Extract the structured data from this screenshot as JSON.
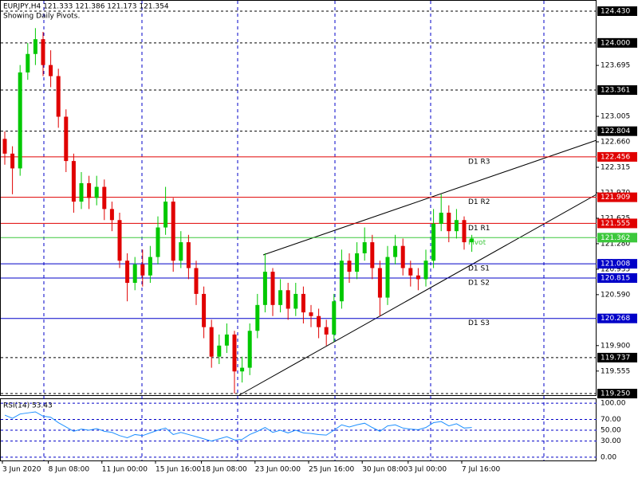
{
  "chart_data": {
    "type": "candlestick",
    "title": "EURJPY,H4  121.333 121.386 121.173 121.354",
    "subtitle": "Showing Daily Pivots.",
    "categories": [
      "3 Jun 2020",
      null,
      null,
      null,
      null,
      null,
      "8 Jun 08:00",
      null,
      null,
      null,
      null,
      null,
      null,
      "11 Jun 00:00",
      null,
      null,
      null,
      null,
      null,
      null,
      "15 Jun 16:00",
      null,
      null,
      null,
      null,
      null,
      "18 Jun 08:00",
      null,
      null,
      null,
      null,
      null,
      null,
      "23 Jun 00:00",
      null,
      null,
      null,
      null,
      null,
      null,
      "25 Jun 16:00",
      null,
      null,
      null,
      null,
      null,
      null,
      "30 Jun 08:00",
      null,
      null,
      null,
      null,
      null,
      "3 Jul 00:00",
      null,
      null,
      null,
      null,
      null,
      null,
      "7 Jul 16:00",
      null
    ],
    "open": [
      122.7,
      122.5,
      122.3,
      123.6,
      123.85,
      124.05,
      123.7,
      123.55,
      123.0,
      122.4,
      121.85,
      122.1,
      121.9,
      122.05,
      121.75,
      121.6,
      121.05,
      120.75,
      121.0,
      120.85,
      121.1,
      121.5,
      121.85,
      121.05,
      121.3,
      120.95,
      120.6,
      120.15,
      119.75,
      119.9,
      120.05,
      119.55,
      119.6,
      120.1,
      120.45,
      120.9,
      120.45,
      120.65,
      120.4,
      120.6,
      120.35,
      120.3,
      120.15,
      120.05,
      120.5,
      121.05,
      120.9,
      121.15,
      121.3,
      120.95,
      120.55,
      121.1,
      121.25,
      120.95,
      120.85,
      120.8,
      121.05,
      121.55,
      121.7,
      121.45,
      121.6,
      121.3
    ],
    "high": [
      122.8,
      122.6,
      123.7,
      124.0,
      124.2,
      124.15,
      123.9,
      123.65,
      123.1,
      122.5,
      122.25,
      122.2,
      122.2,
      122.15,
      121.85,
      121.7,
      121.15,
      121.1,
      121.2,
      121.25,
      121.65,
      122.05,
      121.9,
      121.45,
      121.4,
      121.05,
      120.7,
      120.25,
      120.05,
      120.2,
      120.1,
      119.75,
      120.2,
      120.6,
      121.15,
      120.95,
      120.8,
      120.75,
      120.75,
      120.7,
      120.45,
      120.4,
      120.25,
      120.6,
      121.2,
      121.15,
      121.3,
      121.5,
      121.4,
      121.05,
      121.25,
      121.4,
      121.35,
      121.05,
      120.95,
      121.2,
      121.75,
      121.95,
      121.8,
      121.75,
      121.65,
      121.4
    ],
    "low": [
      122.35,
      121.95,
      122.2,
      123.5,
      123.7,
      123.55,
      123.4,
      122.85,
      122.25,
      121.7,
      121.75,
      121.75,
      121.8,
      121.6,
      121.45,
      120.95,
      120.5,
      120.65,
      120.7,
      120.75,
      121.0,
      121.4,
      120.9,
      120.95,
      120.8,
      120.45,
      120.0,
      119.6,
      119.65,
      119.8,
      119.25,
      119.4,
      119.5,
      120.0,
      120.35,
      120.3,
      120.35,
      120.25,
      120.3,
      120.2,
      120.15,
      120.0,
      119.9,
      119.95,
      120.4,
      120.75,
      120.8,
      121.05,
      120.8,
      120.3,
      120.45,
      121.0,
      120.85,
      120.7,
      120.65,
      120.7,
      120.95,
      121.45,
      121.3,
      121.35,
      121.2,
      121.17
    ],
    "close": [
      122.5,
      122.3,
      123.6,
      123.85,
      124.05,
      123.7,
      123.55,
      123.0,
      122.4,
      121.85,
      122.1,
      121.9,
      122.05,
      121.75,
      121.6,
      121.05,
      120.75,
      121.0,
      120.85,
      121.1,
      121.5,
      121.85,
      121.05,
      121.3,
      120.95,
      120.6,
      120.15,
      119.75,
      119.9,
      120.05,
      119.55,
      119.6,
      120.1,
      120.45,
      120.9,
      120.45,
      120.65,
      120.4,
      120.6,
      120.35,
      120.3,
      120.15,
      120.05,
      120.5,
      121.05,
      120.9,
      121.15,
      121.3,
      120.95,
      120.55,
      121.1,
      121.25,
      120.95,
      120.85,
      120.8,
      121.05,
      121.55,
      121.7,
      121.45,
      121.6,
      121.3,
      121.35
    ],
    "up_color": "#00c800",
    "down_color": "#e00000",
    "ylim": [
      119.218,
      124.581
    ],
    "yticks": [
      {
        "value": 123.695,
        "label": "123.695"
      },
      {
        "value": 123.005,
        "label": "123.005"
      },
      {
        "value": 122.66,
        "label": "122.660"
      },
      {
        "value": 122.315,
        "label": "122.315"
      },
      {
        "value": 121.97,
        "label": "121.970"
      },
      {
        "value": 121.625,
        "label": "121.625"
      },
      {
        "value": 121.28,
        "label": "121.280"
      },
      {
        "value": 120.935,
        "label": "120.935"
      },
      {
        "value": 120.59,
        "label": "120.590"
      },
      {
        "value": 119.9,
        "label": "119.900"
      },
      {
        "value": 119.555,
        "label": "119.555"
      }
    ],
    "levels": [
      {
        "value": 124.43,
        "label": "124.430"
      },
      {
        "value": 124,
        "label": "124.000"
      },
      {
        "value": 123.361,
        "label": "123.361"
      },
      {
        "value": 122.804,
        "label": "122.804"
      },
      {
        "value": 119.737,
        "label": "119.737"
      },
      {
        "value": 119.25,
        "label": "119.250"
      }
    ],
    "pivots": [
      {
        "name": "D1 R3",
        "value": 122.456,
        "label": "122.456",
        "color": "#e00000"
      },
      {
        "name": "D1 R2",
        "value": 121.909,
        "label": "121.909",
        "color": "#e00000"
      },
      {
        "name": "D1 R1",
        "value": 121.555,
        "label": "121.555",
        "color": "#e00000"
      },
      {
        "name": "Pivot",
        "value": 121.362,
        "label": "121.362",
        "color": "#3cc83c"
      },
      {
        "name": "D1 S1",
        "value": 121.008,
        "label": "121.008",
        "color": "#0000c8"
      },
      {
        "name": "D1 S2",
        "value": 120.815,
        "label": "120.815",
        "color": "#0000c8"
      },
      {
        "name": "D1 S3",
        "value": 120.268,
        "label": "120.268",
        "color": "#0000c8"
      }
    ],
    "rsi": {
      "title": "RSI(14) 53.43",
      "color": "#1e90ff",
      "values": [
        78,
        72,
        80,
        82,
        84,
        76,
        74,
        64,
        56,
        48,
        52,
        50,
        53,
        48,
        46,
        40,
        36,
        42,
        40,
        45,
        50,
        54,
        42,
        46,
        42,
        38,
        34,
        30,
        34,
        38,
        32,
        33,
        42,
        48,
        55,
        46,
        50,
        45,
        50,
        45,
        44,
        42,
        41,
        50,
        60,
        56,
        60,
        63,
        55,
        48,
        58,
        60,
        54,
        52,
        51,
        55,
        64,
        66,
        58,
        62,
        54,
        55
      ],
      "ylim": [
        -6,
        109
      ],
      "yticks": [
        {
          "value": 100,
          "label": "100.00"
        },
        {
          "value": 70,
          "label": "70.00"
        },
        {
          "value": 50,
          "label": "50.00"
        },
        {
          "value": 30,
          "label": "30.00"
        },
        {
          "value": 0,
          "label": "0.00"
        }
      ]
    }
  }
}
